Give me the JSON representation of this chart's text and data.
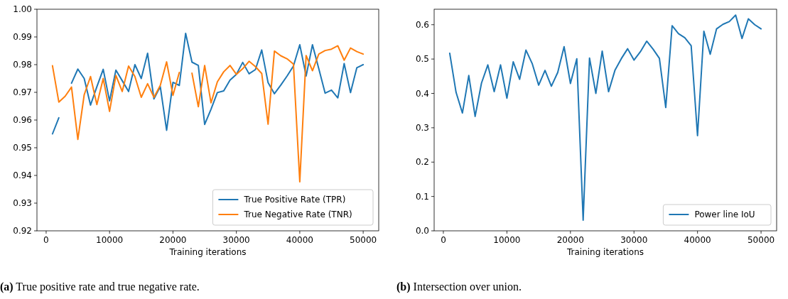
{
  "chart_data": [
    {
      "type": "line",
      "xlabel": "Training iterations",
      "annotations": [
        "(a) True positive rate and true negative rate."
      ],
      "x": [
        1000,
        2000,
        3000,
        4000,
        5000,
        6000,
        7000,
        8000,
        9000,
        10000,
        11000,
        12000,
        13000,
        14000,
        15000,
        16000,
        17000,
        18000,
        19000,
        20000,
        21000,
        22000,
        23000,
        24000,
        25000,
        26000,
        27000,
        28000,
        29000,
        30000,
        31000,
        32000,
        33000,
        34000,
        35000,
        36000,
        37000,
        38000,
        39000,
        40000,
        41000,
        42000,
        43000,
        44000,
        45000,
        46000,
        47000,
        48000,
        49000,
        50000
      ],
      "series": [
        {
          "name": "True Positive Rate (TPR)",
          "color": "#1f77b4",
          "values": [
            0.955,
            0.9608,
            null,
            0.9733,
            0.9784,
            0.975,
            0.9654,
            0.972,
            0.9783,
            0.9669,
            0.978,
            0.9742,
            0.9703,
            0.98,
            0.975,
            0.9841,
            0.9676,
            0.9721,
            0.9563,
            0.9736,
            0.9725,
            0.9913,
            0.9809,
            0.9797,
            0.9584,
            0.9639,
            0.9699,
            0.9705,
            0.9744,
            0.9765,
            0.9808,
            0.9767,
            0.9782,
            0.9853,
            0.9735,
            0.9695,
            0.9726,
            0.9759,
            0.9795,
            0.9872,
            0.9759,
            0.9872,
            0.9785,
            0.9697,
            0.9708,
            0.968,
            0.9804,
            0.9699,
            0.9789,
            0.98
          ]
        },
        {
          "name": "True Negative Rate (TNR)",
          "color": "#ff7f0e",
          "values": [
            0.9796,
            0.9665,
            0.9686,
            0.9719,
            0.953,
            0.9691,
            0.9757,
            0.9656,
            0.975,
            0.9631,
            0.9761,
            0.9703,
            0.9795,
            0.9757,
            0.9682,
            0.9731,
            0.9682,
            0.9725,
            0.981,
            0.9689,
            0.9772,
            null,
            0.9769,
            0.9648,
            0.9797,
            0.9662,
            0.9738,
            0.9774,
            0.9797,
            0.9765,
            0.9785,
            0.9812,
            0.9793,
            0.9768,
            0.9585,
            0.9849,
            0.9832,
            0.9821,
            0.9802,
            0.9377,
            0.9833,
            0.9778,
            0.9838,
            0.9851,
            0.9856,
            0.9868,
            0.9816,
            0.986,
            0.9847,
            0.9838
          ]
        }
      ],
      "xlim": [
        -1450,
        52450
      ],
      "ylim": [
        0.92,
        1.0
      ],
      "xticks": [
        0,
        10000,
        20000,
        30000,
        40000,
        50000
      ],
      "yticks": [
        0.92,
        0.93,
        0.94,
        0.95,
        0.96,
        0.97,
        0.98,
        0.99,
        {
          "value": 1,
          "label": "1.00"
        }
      ],
      "legend": "bottom right",
      "line_style": "solid"
    },
    {
      "type": "line",
      "xlabel": "Training iterations",
      "annotations": [
        "(b) Intersection over union."
      ],
      "x": [
        1000,
        2000,
        3000,
        4000,
        5000,
        6000,
        7000,
        8000,
        9000,
        10000,
        11000,
        12000,
        13000,
        14000,
        15000,
        16000,
        17000,
        18000,
        19000,
        20000,
        21000,
        22000,
        23000,
        24000,
        25000,
        26000,
        27000,
        28000,
        29000,
        30000,
        31000,
        32000,
        33000,
        34000,
        35000,
        36000,
        37000,
        38000,
        39000,
        40000,
        41000,
        42000,
        43000,
        44000,
        45000,
        46000,
        47000,
        48000,
        49000,
        50000
      ],
      "series": [
        {
          "name": "Power line IoU",
          "color": "#1f77b4",
          "values": [
            0.517,
            0.403,
            0.343,
            0.452,
            0.333,
            0.43,
            0.483,
            0.405,
            0.483,
            0.386,
            0.492,
            0.441,
            0.526,
            0.486,
            0.424,
            0.467,
            0.421,
            0.461,
            0.536,
            0.429,
            0.501,
            0.031,
            0.503,
            0.4,
            0.523,
            0.405,
            0.467,
            0.501,
            0.53,
            0.497,
            0.521,
            0.552,
            0.529,
            0.502,
            0.359,
            0.597,
            0.574,
            0.562,
            0.539,
            0.277,
            0.581,
            0.514,
            0.588,
            0.601,
            0.609,
            0.628,
            0.56,
            0.617,
            0.6,
            0.588
          ]
        }
      ],
      "xlim": [
        -1450,
        52450
      ],
      "ylim": [
        0,
        0.645
      ],
      "xticks": [
        0,
        10000,
        20000,
        30000,
        40000,
        50000
      ],
      "yticks": [
        {
          "value": 0,
          "label": "0.0"
        },
        0.1,
        0.2,
        0.3,
        0.4,
        0.5,
        0.6
      ],
      "legend": "bottom right",
      "line_style": "solid"
    }
  ]
}
